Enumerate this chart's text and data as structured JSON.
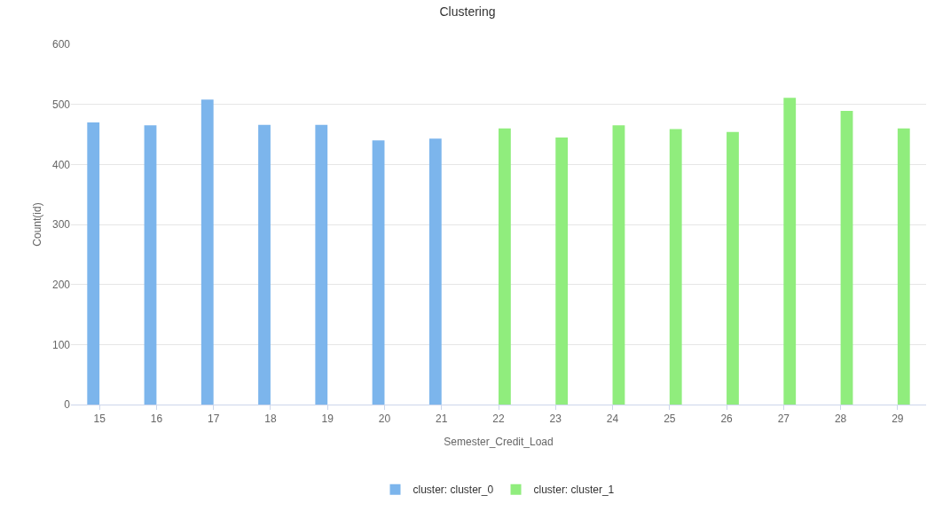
{
  "chart_data": {
    "type": "bar",
    "title": "Clustering",
    "xlabel": "Semester_Credit_Load",
    "ylabel": "Count(id)",
    "categories": [
      "15",
      "16",
      "17",
      "18",
      "19",
      "20",
      "21",
      "22",
      "23",
      "24",
      "25",
      "26",
      "27",
      "28",
      "29"
    ],
    "series": [
      {
        "name": "cluster: cluster_0",
        "color": "#7cb5ec",
        "values": [
          470,
          465,
          508,
          466,
          466,
          440,
          443,
          null,
          null,
          null,
          null,
          null,
          null,
          null,
          null
        ]
      },
      {
        "name": "cluster: cluster_1",
        "color": "#90ed7d",
        "values": [
          null,
          null,
          null,
          null,
          null,
          null,
          null,
          460,
          445,
          465,
          459,
          454,
          511,
          489,
          460
        ]
      }
    ],
    "ylim": [
      0,
      600
    ],
    "yticks": [
      0,
      100,
      200,
      300,
      400,
      500,
      600
    ],
    "grid": "y",
    "legend": "bottom"
  }
}
